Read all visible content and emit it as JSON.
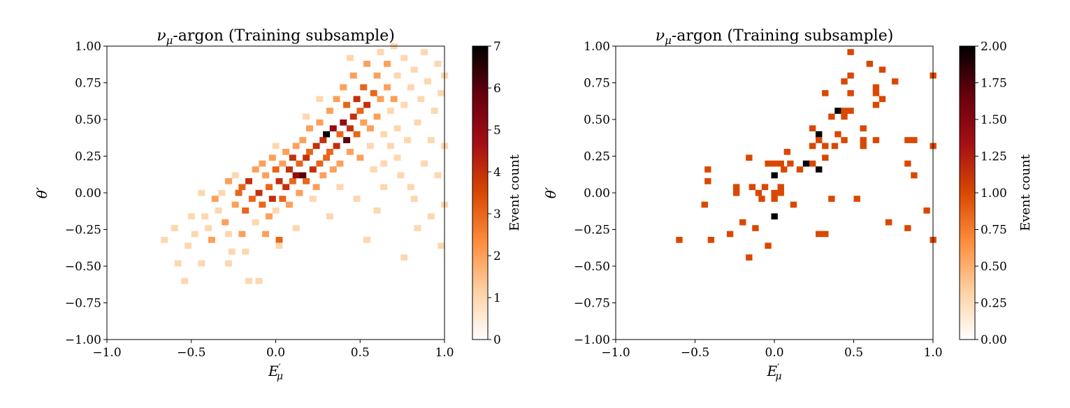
{
  "colors": {
    "cmap": [
      "#ffffff",
      "#fdd0a2",
      "#fd8d3c",
      "#d94801",
      "#a50f15",
      "#67000d",
      "#000000"
    ]
  },
  "chart_data": [
    {
      "type": "heatmap",
      "title_main": "ν",
      "title_sub": "μ",
      "title_rest": "-argon (Training subsample)",
      "xlabel_main": "E",
      "xlabel_prime": "′",
      "xlabel_sub": "μ",
      "ylabel": "θ′",
      "colorbar_label": "Event count",
      "xlim": [
        -1.0,
        1.0
      ],
      "ylim": [
        -1.0,
        1.0
      ],
      "vlim": [
        0,
        7
      ],
      "bin_size": 0.04,
      "xticks": [
        "−1.0",
        "−0.5",
        "0.0",
        "0.5",
        "1.0"
      ],
      "yticks": [
        "−1.00",
        "−0.75",
        "−0.50",
        "−0.25",
        "0.00",
        "0.25",
        "0.50",
        "0.75",
        "1.00"
      ],
      "colorbar_ticks": [
        "0",
        "1",
        "2",
        "3",
        "4",
        "5",
        "6",
        "7"
      ],
      "cells": [
        [
          -0.68,
          -0.34,
          1
        ],
        [
          -0.62,
          -0.26,
          1
        ],
        [
          -0.6,
          -0.5,
          1
        ],
        [
          -0.56,
          -0.62,
          1
        ],
        [
          -0.54,
          -0.38,
          1
        ],
        [
          -0.5,
          -0.3,
          1
        ],
        [
          -0.46,
          -0.5,
          1
        ],
        [
          -0.44,
          -0.18,
          1
        ],
        [
          -0.42,
          -0.26,
          1
        ],
        [
          -0.4,
          -0.34,
          2
        ],
        [
          -0.38,
          -0.06,
          2
        ],
        [
          -0.36,
          -0.14,
          1
        ],
        [
          -0.34,
          -0.02,
          1
        ],
        [
          -0.32,
          -0.22,
          2
        ],
        [
          -0.3,
          0.06,
          2
        ],
        [
          -0.3,
          -0.3,
          1
        ],
        [
          -0.28,
          -0.42,
          1
        ],
        [
          -0.26,
          0.1,
          1
        ],
        [
          -0.26,
          -0.1,
          2
        ],
        [
          -0.24,
          -0.02,
          3
        ],
        [
          -0.22,
          0.02,
          3
        ],
        [
          -0.22,
          -0.3,
          2
        ],
        [
          -0.2,
          -0.14,
          3
        ],
        [
          -0.18,
          -0.62,
          1
        ],
        [
          -0.18,
          0.06,
          4
        ],
        [
          -0.16,
          -0.06,
          3
        ],
        [
          -0.14,
          0.14,
          2
        ],
        [
          -0.14,
          -0.22,
          1
        ],
        [
          -0.12,
          -0.02,
          4
        ],
        [
          -0.1,
          -0.1,
          3
        ],
        [
          -0.1,
          0.18,
          2
        ],
        [
          -0.08,
          0.1,
          2
        ],
        [
          -0.08,
          -0.3,
          2
        ],
        [
          -0.06,
          0.02,
          3
        ],
        [
          -0.06,
          -0.18,
          2
        ],
        [
          -0.04,
          -0.06,
          4
        ],
        [
          -0.04,
          0.22,
          2
        ],
        [
          -0.02,
          0.14,
          3
        ],
        [
          -0.02,
          -0.14,
          1
        ],
        [
          0.0,
          0.06,
          4
        ],
        [
          0.0,
          -0.34,
          3
        ],
        [
          0.02,
          0.18,
          2
        ],
        [
          0.02,
          -0.06,
          3
        ],
        [
          0.04,
          0.26,
          2
        ],
        [
          0.04,
          0.02,
          4
        ],
        [
          0.06,
          0.14,
          4
        ],
        [
          0.06,
          -0.1,
          2
        ],
        [
          0.08,
          0.22,
          4
        ],
        [
          0.08,
          0.06,
          3
        ],
        [
          0.1,
          0.3,
          2
        ],
        [
          0.1,
          0.1,
          5
        ],
        [
          0.12,
          0.18,
          3
        ],
        [
          0.12,
          -0.02,
          2
        ],
        [
          0.14,
          0.1,
          6
        ],
        [
          0.14,
          0.34,
          2
        ],
        [
          0.16,
          0.22,
          4
        ],
        [
          0.16,
          0.06,
          3
        ],
        [
          0.18,
          0.26,
          3
        ],
        [
          0.18,
          0.42,
          2
        ],
        [
          0.2,
          0.14,
          4
        ],
        [
          0.2,
          -0.06,
          1
        ],
        [
          0.22,
          0.3,
          4
        ],
        [
          0.22,
          0.02,
          2
        ],
        [
          0.24,
          0.18,
          3
        ],
        [
          0.24,
          0.46,
          2
        ],
        [
          0.26,
          0.34,
          4
        ],
        [
          0.26,
          0.1,
          2
        ],
        [
          0.28,
          0.38,
          7
        ],
        [
          0.28,
          0.22,
          3
        ],
        [
          0.3,
          0.26,
          3
        ],
        [
          0.3,
          0.54,
          2
        ],
        [
          0.32,
          0.42,
          5
        ],
        [
          0.32,
          0.14,
          2
        ],
        [
          0.34,
          0.3,
          4
        ],
        [
          0.34,
          0.62,
          2
        ],
        [
          0.36,
          0.38,
          3
        ],
        [
          0.36,
          0.18,
          2
        ],
        [
          0.38,
          0.46,
          5
        ],
        [
          0.38,
          0.7,
          2
        ],
        [
          0.4,
          0.34,
          6
        ],
        [
          0.4,
          0.58,
          3
        ],
        [
          0.42,
          0.42,
          4
        ],
        [
          0.42,
          0.26,
          2
        ],
        [
          0.44,
          0.5,
          4
        ],
        [
          0.44,
          0.78,
          2
        ],
        [
          0.46,
          0.38,
          3
        ],
        [
          0.46,
          0.62,
          4
        ],
        [
          0.48,
          0.54,
          3
        ],
        [
          0.48,
          0.22,
          2
        ],
        [
          0.5,
          0.7,
          3
        ],
        [
          0.5,
          0.46,
          2
        ],
        [
          0.52,
          0.58,
          4
        ],
        [
          0.52,
          0.86,
          2
        ],
        [
          0.54,
          0.42,
          2
        ],
        [
          0.54,
          0.3,
          1
        ],
        [
          0.56,
          0.66,
          3
        ],
        [
          0.56,
          0.14,
          1
        ],
        [
          0.58,
          0.78,
          2
        ],
        [
          0.58,
          0.5,
          2
        ],
        [
          0.6,
          0.62,
          2
        ],
        [
          0.6,
          0.94,
          1
        ],
        [
          0.62,
          0.38,
          1
        ],
        [
          0.62,
          0.18,
          1
        ],
        [
          0.64,
          0.7,
          2
        ],
        [
          0.64,
          0.86,
          2
        ],
        [
          0.66,
          0.54,
          1
        ],
        [
          0.66,
          0.3,
          1
        ],
        [
          0.68,
          0.98,
          1
        ],
        [
          0.68,
          0.62,
          2
        ],
        [
          0.7,
          0.78,
          1
        ],
        [
          0.7,
          0.42,
          1
        ],
        [
          0.72,
          0.1,
          1
        ],
        [
          0.74,
          0.9,
          1
        ],
        [
          0.74,
          0.58,
          1
        ],
        [
          0.76,
          0.34,
          1
        ],
        [
          0.78,
          0.7,
          1
        ],
        [
          0.78,
          0.02,
          1
        ],
        [
          0.8,
          0.82,
          1
        ],
        [
          0.82,
          0.46,
          1
        ],
        [
          0.82,
          -0.26,
          1
        ],
        [
          0.84,
          0.62,
          1
        ],
        [
          0.86,
          0.18,
          1
        ],
        [
          0.88,
          0.74,
          1
        ],
        [
          0.9,
          0.34,
          1
        ],
        [
          0.9,
          -0.18,
          1
        ],
        [
          0.92,
          0.54,
          1
        ],
        [
          0.94,
          0.86,
          1
        ],
        [
          0.94,
          0.1,
          1
        ],
        [
          0.96,
          0.66,
          1
        ],
        [
          0.96,
          -0.38,
          1
        ],
        [
          0.98,
          0.78,
          1
        ],
        [
          0.98,
          0.3,
          1
        ],
        [
          0.98,
          -0.1,
          1
        ],
        [
          -0.3,
          -0.5,
          1
        ],
        [
          -0.12,
          -0.62,
          1
        ],
        [
          0.1,
          -0.26,
          1
        ],
        [
          0.3,
          -0.18,
          1
        ],
        [
          0.52,
          -0.34,
          1
        ],
        [
          0.74,
          -0.46,
          1
        ],
        [
          0.58,
          -0.14,
          1
        ],
        [
          0.46,
          -0.06,
          1
        ],
        [
          0.7,
          0.22,
          1
        ],
        [
          0.86,
          0.94,
          1
        ],
        [
          0.16,
          0.5,
          1
        ],
        [
          -0.02,
          0.3,
          1
        ],
        [
          0.24,
          0.62,
          1
        ],
        [
          0.42,
          0.9,
          1
        ],
        [
          0.36,
          0.02,
          1
        ],
        [
          -0.46,
          -0.02,
          1
        ],
        [
          -0.52,
          -0.18,
          1
        ],
        [
          0.0,
          -0.38,
          1
        ],
        [
          -0.2,
          -0.42,
          1
        ],
        [
          0.62,
          0.02,
          1
        ],
        [
          0.8,
          -0.06,
          1
        ]
      ]
    },
    {
      "type": "heatmap",
      "title_main": "ν",
      "title_sub": "μ",
      "title_rest": "-argon (Training subsample)",
      "xlabel_main": "E",
      "xlabel_prime": "′",
      "xlabel_sub": "μ",
      "ylabel": "θ′",
      "colorbar_label": "Event count",
      "xlim": [
        -1.0,
        1.0
      ],
      "ylim": [
        -1.0,
        1.0
      ],
      "vlim": [
        0,
        2
      ],
      "bin_size": 0.04,
      "xticks": [
        "−1.0",
        "−0.5",
        "0.0",
        "0.5",
        "1.0"
      ],
      "yticks": [
        "−1.00",
        "−0.75",
        "−0.50",
        "−0.25",
        "0.00",
        "0.25",
        "0.50",
        "0.75",
        "1.00"
      ],
      "colorbar_ticks": [
        "0.00",
        "0.25",
        "0.50",
        "0.75",
        "1.00",
        "1.25",
        "1.50",
        "1.75",
        "2.00"
      ],
      "cells": [
        [
          -0.62,
          -0.34,
          1
        ],
        [
          -0.42,
          -0.34,
          1
        ],
        [
          -0.44,
          0.14,
          1
        ],
        [
          -0.44,
          0.06,
          1
        ],
        [
          -0.46,
          -0.1,
          1
        ],
        [
          -0.3,
          -0.3,
          1
        ],
        [
          -0.26,
          0.02,
          1
        ],
        [
          -0.26,
          -0.02,
          1
        ],
        [
          -0.22,
          -0.22,
          1
        ],
        [
          -0.18,
          0.22,
          1
        ],
        [
          -0.18,
          -0.46,
          1
        ],
        [
          -0.16,
          0.02,
          1
        ],
        [
          -0.14,
          -0.26,
          1
        ],
        [
          -0.12,
          -0.02,
          1
        ],
        [
          -0.1,
          -0.06,
          1
        ],
        [
          -0.08,
          0.02,
          1
        ],
        [
          -0.06,
          0.18,
          1
        ],
        [
          -0.06,
          -0.38,
          1
        ],
        [
          -0.02,
          0.18,
          1
        ],
        [
          -0.02,
          0.1,
          2
        ],
        [
          -0.02,
          -0.02,
          1
        ],
        [
          -0.02,
          -0.06,
          1
        ],
        [
          -0.02,
          -0.18,
          2
        ],
        [
          0.02,
          0.18,
          1
        ],
        [
          0.02,
          0.02,
          1
        ],
        [
          0.02,
          -0.02,
          1
        ],
        [
          0.04,
          0.14,
          1
        ],
        [
          0.06,
          0.26,
          1
        ],
        [
          0.08,
          0.18,
          1
        ],
        [
          0.1,
          -0.1,
          1
        ],
        [
          0.14,
          0.14,
          1
        ],
        [
          0.18,
          0.18,
          2
        ],
        [
          0.22,
          0.42,
          1
        ],
        [
          0.22,
          0.3,
          1
        ],
        [
          0.22,
          0.18,
          1
        ],
        [
          0.26,
          0.38,
          2
        ],
        [
          0.26,
          0.34,
          1
        ],
        [
          0.26,
          0.14,
          2
        ],
        [
          0.26,
          -0.3,
          1
        ],
        [
          0.3,
          0.66,
          1
        ],
        [
          0.3,
          0.3,
          1
        ],
        [
          0.3,
          -0.3,
          1
        ],
        [
          0.3,
          0.22,
          1
        ],
        [
          0.34,
          -0.06,
          1
        ],
        [
          0.34,
          0.5,
          1
        ],
        [
          0.36,
          0.3,
          1
        ],
        [
          0.38,
          0.54,
          2
        ],
        [
          0.38,
          0.38,
          1
        ],
        [
          0.42,
          0.74,
          1
        ],
        [
          0.42,
          0.54,
          1
        ],
        [
          0.42,
          0.5,
          1
        ],
        [
          0.42,
          0.34,
          1
        ],
        [
          0.46,
          0.94,
          1
        ],
        [
          0.46,
          0.78,
          1
        ],
        [
          0.46,
          0.66,
          1
        ],
        [
          0.46,
          0.54,
          1
        ],
        [
          0.5,
          -0.06,
          1
        ],
        [
          0.54,
          0.42,
          1
        ],
        [
          0.54,
          0.34,
          1
        ],
        [
          0.54,
          0.3,
          1
        ],
        [
          0.58,
          0.86,
          1
        ],
        [
          0.62,
          0.7,
          1
        ],
        [
          0.62,
          0.66,
          1
        ],
        [
          0.62,
          0.58,
          1
        ],
        [
          0.62,
          0.34,
          1
        ],
        [
          0.66,
          0.62,
          1
        ],
        [
          0.66,
          0.82,
          1
        ],
        [
          0.7,
          -0.22,
          1
        ],
        [
          0.74,
          0.74,
          1
        ],
        [
          0.82,
          0.34,
          1
        ],
        [
          0.82,
          0.18,
          1
        ],
        [
          0.82,
          -0.26,
          1
        ],
        [
          0.86,
          0.34,
          1
        ],
        [
          0.86,
          0.1,
          1
        ],
        [
          0.94,
          -0.14,
          1
        ],
        [
          0.98,
          0.78,
          1
        ],
        [
          0.98,
          0.3,
          1
        ],
        [
          0.98,
          -0.34,
          1
        ]
      ]
    }
  ]
}
